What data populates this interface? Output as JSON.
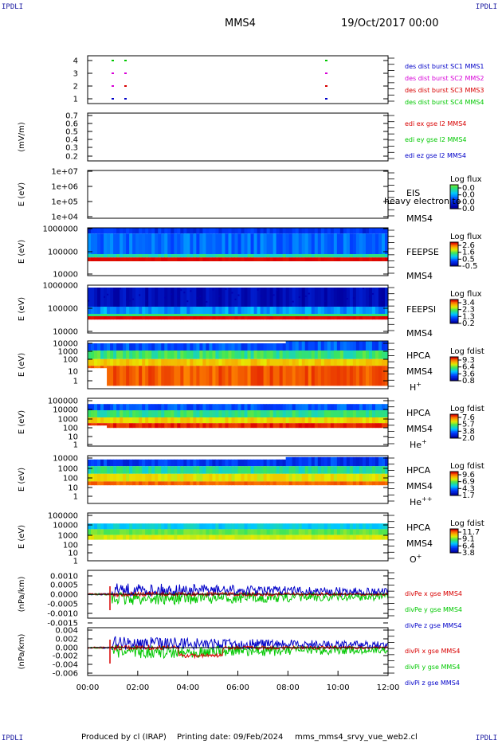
{
  "corner_tag": "IPDLI",
  "header": {
    "title": "MMS4",
    "date": "19/Oct/2017 00:00"
  },
  "footer": {
    "produced_by": "Produced by cl (IRAP)",
    "printing_date": "Printing date: 09/Feb/2024",
    "file": "mms_mms4_srvy_vue_web2.cl"
  },
  "colors": {
    "red": "#d80000",
    "green": "#00c800",
    "blue": "#0000c8",
    "magenta": "#d800d8"
  },
  "x_axis": {
    "ticks": [
      "00:00",
      "02:00",
      "04:00",
      "06:00",
      "08:00",
      "10:00",
      "12:00"
    ]
  },
  "panels": [
    {
      "id": "burst",
      "ylabel": "",
      "yticks": [
        "4",
        "3",
        "2",
        "1"
      ],
      "legend": [
        {
          "text": "des dist burst SC1 MMS1",
          "color": "#0000c8"
        },
        {
          "text": "des dist burst SC2 MMS2",
          "color": "#d800d8"
        },
        {
          "text": "des dist burst SC3 MMS3",
          "color": "#d80000"
        },
        {
          "text": "des dist burst SC4 MMS4",
          "color": "#00c800"
        }
      ]
    },
    {
      "id": "edi",
      "ylabel": "(mV/m)",
      "yticks": [
        "0.7",
        "0.6",
        "0.5",
        "0.4",
        "0.3",
        "0.2"
      ],
      "legend": [
        {
          "text": "edi ex gse l2 MMS4",
          "color": "#d80000"
        },
        {
          "text": "edi ey gse l2 MMS4",
          "color": "#00c800"
        },
        {
          "text": "edi ez gse l2 MMS4",
          "color": "#0000c8"
        }
      ]
    },
    {
      "id": "eis",
      "ylabel": "E (eV)",
      "yticks": [
        "1e+07",
        "1e+06",
        "1e+05",
        "1e+04"
      ],
      "instrument": [
        "EIS",
        "MMS4"
      ],
      "overlay": "heavy electron to",
      "cbar": {
        "title": "Log flux",
        "ticks": [
          "0.0",
          "0.0",
          "0.0",
          "0.0"
        ]
      }
    },
    {
      "id": "feepse",
      "ylabel": "E (eV)",
      "yticks": [
        "1000000",
        "100000",
        "10000"
      ],
      "instrument": [
        "FEEPSE",
        "MMS4"
      ],
      "cbar": {
        "title": "Log flux",
        "ticks": [
          "2.6",
          "1.6",
          "0.5",
          "-0.5"
        ]
      }
    },
    {
      "id": "feepsi",
      "ylabel": "E (eV)",
      "yticks": [
        "1000000",
        "100000",
        "10000"
      ],
      "instrument": [
        "FEEPSI",
        "MMS4"
      ],
      "cbar": {
        "title": "Log flux",
        "ticks": [
          "3.4",
          "2.3",
          "1.3",
          "0.2"
        ]
      }
    },
    {
      "id": "hpca_h",
      "ylabel": "E (eV)",
      "yticks": [
        "10000",
        "1000",
        "100",
        "10",
        "1"
      ],
      "instrument": [
        "HPCA",
        "MMS4"
      ],
      "species": "H",
      "charge": "+",
      "cbar": {
        "title": "Log fdist",
        "ticks": [
          "9.3",
          "6.4",
          "3.6",
          "0.8"
        ]
      }
    },
    {
      "id": "hpca_he",
      "ylabel": "E (eV)",
      "yticks": [
        "100000",
        "10000",
        "1000",
        "100",
        "10",
        "1"
      ],
      "instrument": [
        "HPCA",
        "MMS4"
      ],
      "species": "He",
      "charge": "+",
      "cbar": {
        "title": "Log fdist",
        "ticks": [
          "7.6",
          "5.7",
          "3.8",
          "2.0"
        ]
      }
    },
    {
      "id": "hpca_he2",
      "ylabel": "E (eV)",
      "yticks": [
        "10000",
        "1000",
        "100",
        "10",
        "1"
      ],
      "instrument": [
        "HPCA",
        "MMS4"
      ],
      "species": "He",
      "charge": "++",
      "cbar": {
        "title": "Log fdist",
        "ticks": [
          "9.6",
          "6.9",
          "4.3",
          "1.7"
        ]
      }
    },
    {
      "id": "hpca_o",
      "ylabel": "E (eV)",
      "yticks": [
        "100000",
        "10000",
        "1000",
        "100",
        "10",
        "1"
      ],
      "instrument": [
        "HPCA",
        "MMS4"
      ],
      "species": "O",
      "charge": "+",
      "cbar": {
        "title": "Log fdist",
        "ticks": [
          "11.7",
          "9.1",
          "6.4",
          "3.8"
        ]
      }
    },
    {
      "id": "divpe",
      "ylabel": "(nPa/km)",
      "yticks": [
        "0.0010",
        "0.0005",
        "0.0000",
        "-0.0005",
        "-0.0010",
        "-0.0015"
      ],
      "legend": [
        {
          "text": "divPe x gse MMS4",
          "color": "#d80000"
        },
        {
          "text": "divPe y gse MMS4",
          "color": "#00c800"
        },
        {
          "text": "divPe z gse MMS4",
          "color": "#0000c8"
        }
      ]
    },
    {
      "id": "divpi",
      "ylabel": "(nPa/km)",
      "yticks": [
        "0.004",
        "0.002",
        "0.000",
        "-0.002",
        "-0.004",
        "-0.006"
      ],
      "legend": [
        {
          "text": "divPi x gse MMS4",
          "color": "#d80000"
        },
        {
          "text": "divPi y gse MMS4",
          "color": "#00c800"
        },
        {
          "text": "divPi z gse MMS4",
          "color": "#0000c8"
        }
      ]
    }
  ],
  "chart_data": [
    {
      "type": "scatter",
      "title": "",
      "xlabel": "",
      "ylabel": "",
      "x_range": [
        "00:00",
        "12:00"
      ],
      "ylim": [
        0.5,
        4.5
      ],
      "series": [
        {
          "name": "des dist burst SC1 MMS1",
          "x": [
            "00:55",
            "01:25",
            "09:30"
          ],
          "y": [
            1,
            1,
            1
          ]
        },
        {
          "name": "des dist burst SC2 MMS2",
          "x": [
            "00:55",
            "01:25",
            "09:30"
          ],
          "y": [
            2,
            2,
            2
          ]
        },
        {
          "name": "des dist burst SC3 MMS3",
          "x": [
            "00:55",
            "01:25",
            "09:30"
          ],
          "y": [
            3,
            3,
            3
          ]
        },
        {
          "name": "des dist burst SC4 MMS4",
          "x": [
            "00:55",
            "01:25",
            "09:30"
          ],
          "y": [
            4,
            4,
            4
          ]
        }
      ]
    },
    {
      "type": "line",
      "title": "",
      "ylabel": "(mV/m)",
      "ylim": [
        0.15,
        0.7
      ],
      "series": [
        {
          "name": "edi ex gse l2 MMS4",
          "values": []
        },
        {
          "name": "edi ey gse l2 MMS4",
          "values": []
        },
        {
          "name": "edi ez gse l2 MMS4",
          "values": []
        }
      ]
    },
    {
      "type": "heatmap",
      "title": "",
      "ylabel": "E (eV)",
      "ylim": [
        10000,
        10000000
      ],
      "log_y": true,
      "colorbar": "Log flux"
    },
    {
      "type": "heatmap",
      "title": "",
      "ylabel": "E (eV)",
      "ylim": [
        10000,
        1000000
      ],
      "log_y": true,
      "colorbar": "Log flux",
      "colorbar_range": [
        -0.5,
        2.6
      ]
    },
    {
      "type": "heatmap",
      "title": "",
      "ylabel": "E (eV)",
      "ylim": [
        10000,
        1000000
      ],
      "log_y": true,
      "colorbar": "Log flux",
      "colorbar_range": [
        0.2,
        3.4
      ]
    },
    {
      "type": "heatmap",
      "title": "",
      "ylabel": "E (eV)",
      "ylim": [
        1,
        10000
      ],
      "log_y": true,
      "colorbar": "Log fdist",
      "colorbar_range": [
        0.8,
        9.3
      ]
    },
    {
      "type": "heatmap",
      "title": "",
      "ylabel": "E (eV)",
      "ylim": [
        1,
        100000
      ],
      "log_y": true,
      "colorbar": "Log fdist",
      "colorbar_range": [
        2.0,
        7.6
      ]
    },
    {
      "type": "heatmap",
      "title": "",
      "ylabel": "E (eV)",
      "ylim": [
        1,
        10000
      ],
      "log_y": true,
      "colorbar": "Log fdist",
      "colorbar_range": [
        1.7,
        9.6
      ]
    },
    {
      "type": "heatmap",
      "title": "",
      "ylabel": "E (eV)",
      "ylim": [
        1,
        100000
      ],
      "log_y": true,
      "colorbar": "Log fdist",
      "colorbar_range": [
        3.8,
        11.7
      ]
    },
    {
      "type": "line",
      "title": "",
      "ylabel": "(nPa/km)",
      "ylim": [
        -0.0017,
        0.0012
      ],
      "x": [
        "00:00",
        "00:50",
        "01:00",
        "02:00",
        "03:00",
        "04:00",
        "05:00",
        "06:00",
        "07:00",
        "08:00",
        "09:00",
        "10:00",
        "11:00",
        "12:00"
      ],
      "series": [
        {
          "name": "divPe x gse MMS4",
          "values": [
            0,
            0,
            0,
            0,
            0,
            0,
            0,
            0,
            0,
            0,
            0,
            0,
            0,
            0
          ]
        },
        {
          "name": "divPe y gse MMS4",
          "values": [
            0,
            0,
            -0.0003,
            -0.0004,
            -0.0004,
            -0.0003,
            -0.0003,
            -0.0002,
            -0.0002,
            -0.0002,
            -0.0002,
            -0.0001,
            -0.0001,
            0
          ]
        },
        {
          "name": "divPe z gse MMS4",
          "values": [
            0,
            0,
            0.0003,
            0.0004,
            0.0004,
            0.0005,
            0.0003,
            0.0003,
            0.0002,
            0.0002,
            0.0001,
            0.0001,
            0.0001,
            0
          ]
        }
      ]
    },
    {
      "type": "line",
      "title": "",
      "ylabel": "(nPa/km)",
      "ylim": [
        -0.0065,
        0.0045
      ],
      "x": [
        "00:00",
        "00:50",
        "01:00",
        "02:00",
        "03:00",
        "04:00",
        "05:00",
        "06:00",
        "07:00",
        "08:00",
        "09:00",
        "10:00",
        "11:00",
        "12:00"
      ],
      "series": [
        {
          "name": "divPi x gse MMS4",
          "values": [
            0,
            0,
            0,
            0,
            -0.001,
            -0.002,
            -0.0005,
            0,
            0,
            0,
            0,
            0,
            0,
            0
          ]
        },
        {
          "name": "divPi y gse MMS4",
          "values": [
            0,
            0,
            0.0015,
            0.002,
            0.002,
            0.0015,
            0.0012,
            0.001,
            0.001,
            0.0008,
            0.0008,
            0.0006,
            0.0005,
            0.0004
          ]
        },
        {
          "name": "divPi z gse MMS4",
          "values": [
            0,
            0,
            0.0005,
            0.0003,
            0,
            0,
            0,
            0,
            0,
            0,
            0,
            0,
            0,
            0
          ]
        }
      ]
    }
  ]
}
